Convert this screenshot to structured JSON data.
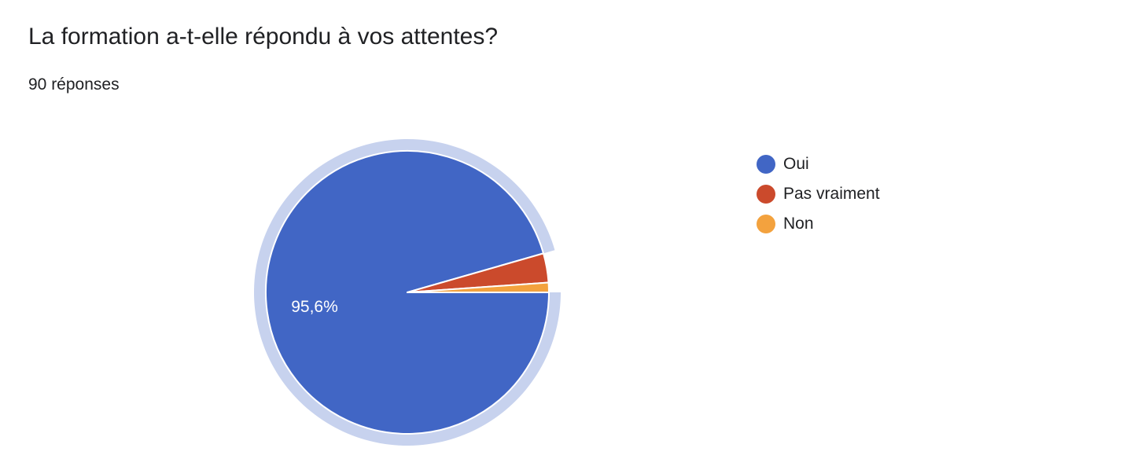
{
  "question": {
    "title": "La formation a-t-elle répondu à vos attentes?",
    "responses": "90 réponses"
  },
  "chart_data": {
    "type": "pie",
    "title": "La formation a-t-elle répondu à vos attentes?",
    "total": 90,
    "labels": [
      "Oui",
      "Pas vraiment",
      "Non"
    ],
    "values": [
      86,
      3,
      1
    ],
    "percent_labels": [
      "95,6%",
      "",
      ""
    ],
    "colors": [
      "#4166c5",
      "#cb4a2c",
      "#f3a23e"
    ],
    "highlight_ring_color": "#c7d2ee",
    "legend_position": "right"
  }
}
